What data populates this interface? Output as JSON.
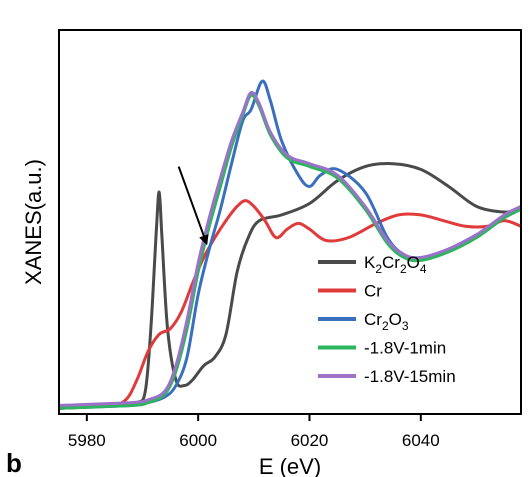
{
  "chart_data": {
    "type": "line",
    "title": "",
    "xlabel": "E (eV)",
    "ylabel": "XANES(a.u.)",
    "xlim": [
      5975,
      6058
    ],
    "ylim": [
      0,
      1.35
    ],
    "xticks": [
      5980,
      6000,
      6020,
      6040
    ],
    "yticks_shown": false,
    "grid": false,
    "legend": {
      "placement": "bottom-right",
      "entries": [
        {
          "label_parts": [
            [
              "K",
              ""
            ],
            [
              "2",
              "sub"
            ],
            [
              "Cr",
              ""
            ],
            [
              "2",
              "sub"
            ],
            [
              "O",
              ""
            ],
            [
              "4",
              "sub"
            ]
          ],
          "color": "#4a4a4a"
        },
        {
          "label_parts": [
            [
              "Cr",
              ""
            ]
          ],
          "color": "#e03a3a"
        },
        {
          "label_parts": [
            [
              "Cr",
              ""
            ],
            [
              "2",
              "sub"
            ],
            [
              "O",
              ""
            ],
            [
              "3",
              "sub"
            ]
          ],
          "color": "#3a6fbf"
        },
        {
          "label_parts": [
            [
              "-1.8V-1min",
              ""
            ]
          ],
          "color": "#2db55d"
        },
        {
          "label_parts": [
            [
              "-1.8V-15min",
              ""
            ]
          ],
          "color": "#9b72c8"
        }
      ]
    },
    "annotations": [
      {
        "type": "arrow",
        "from": [
          5996.5,
          0.87
        ],
        "to": [
          6001.5,
          0.6
        ]
      }
    ],
    "panel_label": "b",
    "series": [
      {
        "name": "K2Cr2O4",
        "color": "#4a4a4a",
        "points": [
          [
            5975,
            0.02
          ],
          [
            5985,
            0.03
          ],
          [
            5989,
            0.04
          ],
          [
            5990.5,
            0.08
          ],
          [
            5991.5,
            0.3
          ],
          [
            5992.5,
            0.65
          ],
          [
            5993,
            0.78
          ],
          [
            5993.5,
            0.62
          ],
          [
            5994.5,
            0.3
          ],
          [
            5996,
            0.12
          ],
          [
            5997.5,
            0.1
          ],
          [
            5999,
            0.12
          ],
          [
            6001,
            0.17
          ],
          [
            6003,
            0.2
          ],
          [
            6005,
            0.28
          ],
          [
            6007,
            0.5
          ],
          [
            6009,
            0.62
          ],
          [
            6011,
            0.68
          ],
          [
            6015,
            0.7
          ],
          [
            6020,
            0.74
          ],
          [
            6025,
            0.82
          ],
          [
            6030,
            0.87
          ],
          [
            6035,
            0.88
          ],
          [
            6040,
            0.86
          ],
          [
            6045,
            0.8
          ],
          [
            6050,
            0.73
          ],
          [
            6055,
            0.71
          ],
          [
            6058,
            0.72
          ]
        ]
      },
      {
        "name": "Cr",
        "color": "#e03a3a",
        "points": [
          [
            5975,
            0.02
          ],
          [
            5984,
            0.03
          ],
          [
            5987,
            0.05
          ],
          [
            5989,
            0.12
          ],
          [
            5991,
            0.22
          ],
          [
            5993,
            0.28
          ],
          [
            5995,
            0.3
          ],
          [
            5997,
            0.36
          ],
          [
            5999,
            0.46
          ],
          [
            6001,
            0.55
          ],
          [
            6003,
            0.62
          ],
          [
            6005,
            0.68
          ],
          [
            6007,
            0.73
          ],
          [
            6008.5,
            0.75
          ],
          [
            6010,
            0.73
          ],
          [
            6012,
            0.68
          ],
          [
            6014,
            0.62
          ],
          [
            6016,
            0.65
          ],
          [
            6018,
            0.67
          ],
          [
            6020,
            0.65
          ],
          [
            6023,
            0.61
          ],
          [
            6027,
            0.62
          ],
          [
            6032,
            0.67
          ],
          [
            6036,
            0.7
          ],
          [
            6040,
            0.7
          ],
          [
            6044,
            0.68
          ],
          [
            6048,
            0.66
          ],
          [
            6052,
            0.66
          ],
          [
            6055,
            0.68
          ],
          [
            6058,
            0.66
          ]
        ]
      },
      {
        "name": "Cr2O3",
        "color": "#3a6fbf",
        "points": [
          [
            5975,
            0.02
          ],
          [
            5988,
            0.03
          ],
          [
            5991,
            0.04
          ],
          [
            5994,
            0.06
          ],
          [
            5996,
            0.1
          ],
          [
            5998,
            0.2
          ],
          [
            6000,
            0.42
          ],
          [
            6002,
            0.58
          ],
          [
            6004,
            0.72
          ],
          [
            6006,
            0.88
          ],
          [
            6008,
            1.03
          ],
          [
            6009.5,
            1.07
          ],
          [
            6011.5,
            1.17
          ],
          [
            6013,
            1.1
          ],
          [
            6015,
            0.96
          ],
          [
            6018,
            0.84
          ],
          [
            6020,
            0.8
          ],
          [
            6022,
            0.84
          ],
          [
            6025,
            0.86
          ],
          [
            6030,
            0.78
          ],
          [
            6034,
            0.62
          ],
          [
            6037,
            0.56
          ],
          [
            6040,
            0.55
          ],
          [
            6045,
            0.58
          ],
          [
            6050,
            0.63
          ],
          [
            6055,
            0.69
          ],
          [
            6058,
            0.72
          ]
        ]
      },
      {
        "name": "-1.8V-1min",
        "color": "#2db55d",
        "points": [
          [
            5975,
            0.02
          ],
          [
            5988,
            0.03
          ],
          [
            5991,
            0.04
          ],
          [
            5994,
            0.07
          ],
          [
            5996,
            0.15
          ],
          [
            5998,
            0.3
          ],
          [
            6000,
            0.5
          ],
          [
            6002,
            0.66
          ],
          [
            6004,
            0.8
          ],
          [
            6006,
            0.94
          ],
          [
            6008,
            1.05
          ],
          [
            6009.5,
            1.12
          ],
          [
            6011,
            1.08
          ],
          [
            6013,
            0.98
          ],
          [
            6016,
            0.9
          ],
          [
            6020,
            0.87
          ],
          [
            6025,
            0.83
          ],
          [
            6030,
            0.72
          ],
          [
            6034,
            0.6
          ],
          [
            6037,
            0.55
          ],
          [
            6040,
            0.54
          ],
          [
            6045,
            0.57
          ],
          [
            6050,
            0.62
          ],
          [
            6055,
            0.69
          ],
          [
            6058,
            0.72
          ]
        ]
      },
      {
        "name": "-1.8V-15min",
        "color": "#9b72c8",
        "points": [
          [
            5975,
            0.03
          ],
          [
            5988,
            0.04
          ],
          [
            5991,
            0.05
          ],
          [
            5994,
            0.08
          ],
          [
            5996,
            0.17
          ],
          [
            5998,
            0.33
          ],
          [
            6000,
            0.53
          ],
          [
            6002,
            0.69
          ],
          [
            6004,
            0.83
          ],
          [
            6006,
            0.96
          ],
          [
            6008,
            1.06
          ],
          [
            6009.5,
            1.13
          ],
          [
            6011,
            1.09
          ],
          [
            6013,
            0.99
          ],
          [
            6016,
            0.91
          ],
          [
            6020,
            0.88
          ],
          [
            6025,
            0.84
          ],
          [
            6030,
            0.73
          ],
          [
            6034,
            0.61
          ],
          [
            6037,
            0.56
          ],
          [
            6040,
            0.55
          ],
          [
            6045,
            0.58
          ],
          [
            6050,
            0.63
          ],
          [
            6055,
            0.7
          ],
          [
            6058,
            0.73
          ]
        ]
      }
    ]
  }
}
